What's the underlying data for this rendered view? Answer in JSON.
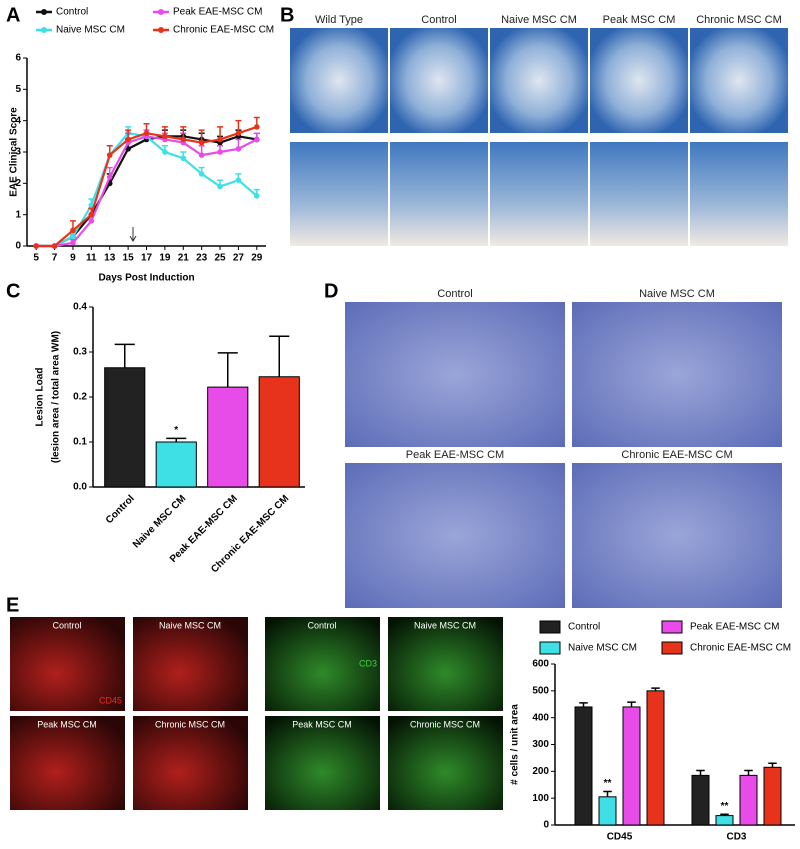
{
  "chart_data": [
    {
      "type": "line",
      "xlabel": "Days Post Induction",
      "ylabel": "EAE Clinical Score",
      "x": [
        5,
        7,
        9,
        11,
        13,
        15,
        17,
        19,
        21,
        23,
        25,
        27,
        29
      ],
      "xlim": [
        4,
        30
      ],
      "xticks": [
        5,
        7,
        9,
        11,
        13,
        15,
        17,
        19,
        21,
        23,
        25,
        27,
        29
      ],
      "ylim": [
        0,
        6
      ],
      "yticks": [
        0,
        1,
        2,
        3,
        4,
        5,
        6
      ],
      "series": [
        {
          "name": "Control",
          "color": "#111111",
          "values": [
            0,
            0,
            0.3,
            1.0,
            2.0,
            3.1,
            3.4,
            3.5,
            3.5,
            3.4,
            3.3,
            3.5,
            3.4
          ],
          "errors": [
            0,
            0,
            0.1,
            0.2,
            0.3,
            0.3,
            0.2,
            0.2,
            0.2,
            0.2,
            0.2,
            0.2,
            0.2
          ]
        },
        {
          "name": "Naive MSC CM",
          "color": "#3ee0e6",
          "values": [
            0,
            0,
            0.3,
            1.3,
            2.9,
            3.6,
            3.5,
            3.0,
            2.8,
            2.3,
            1.9,
            2.1,
            1.6
          ],
          "errors": [
            0,
            0,
            0.1,
            0.2,
            0.3,
            0.2,
            0.2,
            0.2,
            0.2,
            0.2,
            0.2,
            0.2,
            0.2
          ]
        },
        {
          "name": "Peak EAE-MSC CM",
          "color": "#e84ce8",
          "values": [
            0,
            0,
            0.1,
            0.8,
            2.2,
            3.3,
            3.5,
            3.4,
            3.3,
            2.9,
            3.0,
            3.1,
            3.4
          ],
          "errors": [
            0,
            0,
            0.1,
            0.2,
            0.3,
            0.3,
            0.2,
            0.2,
            0.3,
            0.3,
            0.2,
            0.3,
            0.2
          ]
        },
        {
          "name": "Chronic EAE-MSC CM",
          "color": "#e8331c",
          "values": [
            0,
            0,
            0.5,
            1.0,
            2.9,
            3.4,
            3.6,
            3.5,
            3.4,
            3.3,
            3.4,
            3.6,
            3.8
          ],
          "errors": [
            0,
            0,
            0.3,
            0.2,
            0.3,
            0.3,
            0.3,
            0.3,
            0.4,
            0.4,
            0.4,
            0.4,
            0.3
          ]
        }
      ]
    },
    {
      "type": "bar",
      "ylabel": [
        "Lesion Load",
        "(lesion area / total area WM)"
      ],
      "categories": [
        "Control",
        "Naive MSC CM",
        "Peak EAE-MSC CM",
        "Chronic EAE-MSC CM"
      ],
      "values": [
        0.265,
        0.1,
        0.222,
        0.245
      ],
      "errors": [
        0.052,
        0.008,
        0.076,
        0.09
      ],
      "value_annotations": [
        null,
        "*",
        null,
        null
      ],
      "colors": [
        "#222222",
        "#3ee0e6",
        "#e84ce8",
        "#e8331c"
      ],
      "ylim": [
        0,
        0.4
      ],
      "yticks": [
        {
          "value": 0,
          "label": "0.0"
        },
        0.1,
        0.2,
        0.3,
        0.4
      ]
    },
    {
      "type": "bar",
      "ylabel": "# cells / unit area",
      "categories": [
        "CD45",
        "CD3"
      ],
      "ylim": [
        0,
        600
      ],
      "yticks": [
        0,
        100,
        200,
        300,
        400,
        500,
        600
      ],
      "series": [
        {
          "name": "Control",
          "color": "#222222",
          "values": [
            440,
            185
          ],
          "errors": [
            15,
            18
          ]
        },
        {
          "name": "Naive MSC CM",
          "color": "#3ee0e6",
          "values": [
            105,
            35
          ],
          "errors": [
            20,
            5
          ],
          "value_annotations": [
            "**",
            "**"
          ]
        },
        {
          "name": "Peak EAE-MSC CM",
          "color": "#e84ce8",
          "values": [
            440,
            185
          ],
          "errors": [
            18,
            18
          ]
        },
        {
          "name": "Chronic EAE-MSC CM",
          "color": "#e8331c",
          "values": [
            500,
            215
          ],
          "errors": [
            10,
            15
          ]
        }
      ]
    }
  ],
  "panel_labels": [
    "A",
    "B",
    "C",
    "D",
    "E"
  ],
  "figure_b": {
    "labels": [
      "Wild Type",
      "Control",
      "Naive MSC CM",
      "Peak MSC CM",
      "Chronic MSC CM"
    ]
  },
  "figure_d": {
    "labels": [
      "Control",
      "Naive MSC CM",
      "Peak EAE-MSC CM",
      "Chronic EAE-MSC CM"
    ]
  },
  "figure_e": {
    "cd45": {
      "marker": "CD45",
      "labels": [
        "Control",
        "Naive MSC CM",
        "Peak MSC CM",
        "Chronic MSC CM"
      ]
    },
    "cd3": {
      "marker": "CD3",
      "labels": [
        "Control",
        "Naive MSC CM",
        "Peak MSC CM",
        "Chronic MSC CM"
      ]
    }
  }
}
